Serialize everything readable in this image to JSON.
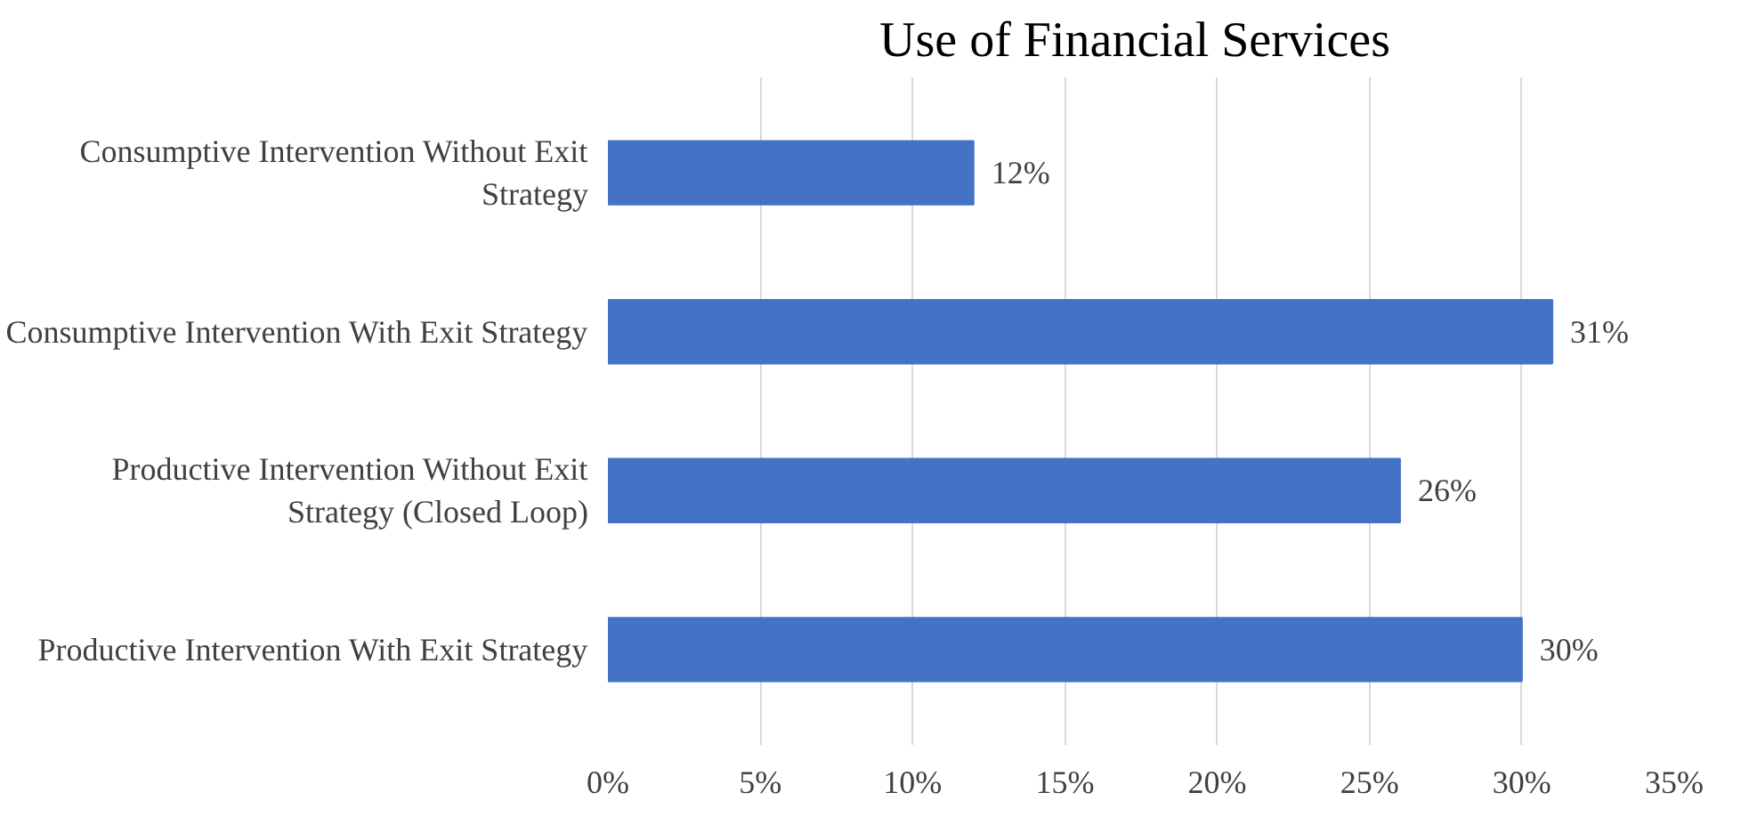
{
  "chart_data": {
    "type": "bar",
    "orientation": "horizontal",
    "title": "Use of Financial  Services",
    "categories": [
      "Consumptive Intervention Without Exit\nStrategy",
      "Consumptive Intervention With Exit Strategy",
      "Productive Intervention Without Exit\nStrategy (Closed Loop)",
      "Productive Intervention With Exit Strategy"
    ],
    "values": [
      12,
      31,
      26,
      30
    ],
    "value_labels": [
      "12%",
      "31%",
      "26%",
      "30%"
    ],
    "color": "#4472c4",
    "xlim": [
      0,
      35
    ],
    "xticks": [
      {
        "value": 0,
        "label": "0%"
      },
      {
        "value": 5,
        "label": "5%"
      },
      {
        "value": 10,
        "label": "10%"
      },
      {
        "value": 15,
        "label": "15%"
      },
      {
        "value": 20,
        "label": "20%"
      },
      {
        "value": 25,
        "label": "25%"
      },
      {
        "value": 30,
        "label": "30%"
      },
      {
        "value": 35,
        "label": "35%"
      }
    ],
    "grid": "x"
  }
}
